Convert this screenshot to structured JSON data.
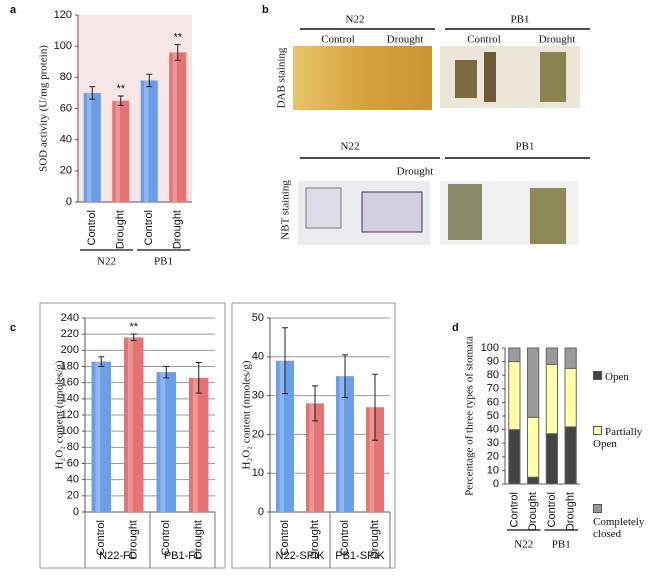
{
  "chart_data": [
    {
      "type": "bar",
      "panel": "a",
      "y_label": "SOD activity (U/mg protein)",
      "categories": [
        "Control",
        "Drought",
        "Control",
        "Drought"
      ],
      "groups": [
        "N22",
        "PB1"
      ],
      "values": [
        70,
        65,
        78,
        96
      ],
      "errors": [
        4,
        3,
        4,
        5
      ],
      "annotations": [
        null,
        "**",
        null,
        "**"
      ],
      "colors": [
        "#6b9ee8",
        "#e57373",
        "#6b9ee8",
        "#e57373"
      ],
      "ylim": [
        0,
        120
      ],
      "yticks": [
        0,
        20,
        40,
        60,
        80,
        100,
        120
      ],
      "grid": false,
      "plot_background": "#f7e6e6"
    },
    {
      "type": "bar",
      "panel": "c",
      "y_label": "H₂O₂ content (nmoles/g)",
      "categories": [
        "Control",
        "Drought",
        "Control",
        "Drought"
      ],
      "groups": [
        "N22-FL",
        "PB1-FL"
      ],
      "values": [
        186,
        216,
        173,
        166
      ],
      "errors": [
        6,
        4,
        7,
        19
      ],
      "annotations": [
        null,
        "**",
        null,
        null
      ],
      "colors": [
        "#6b9ee8",
        "#e57373",
        "#6b9ee8",
        "#e57373"
      ],
      "ylim": [
        0,
        240
      ],
      "yticks": [
        0,
        20,
        40,
        60,
        80,
        100,
        120,
        140,
        160,
        180,
        200,
        220,
        240
      ],
      "grid": true
    },
    {
      "type": "bar",
      "y_label": "H₂O₂ content (nmoles/g)",
      "categories": [
        "Control",
        "Drought",
        "Control",
        "Drought"
      ],
      "groups": [
        "N22-SPIK",
        "PB1-SPIK"
      ],
      "values": [
        39,
        28,
        35,
        27
      ],
      "errors": [
        8.5,
        4.5,
        5.5,
        8.5
      ],
      "colors": [
        "#6b9ee8",
        "#e57373",
        "#6b9ee8",
        "#e57373"
      ],
      "ylim": [
        0,
        50
      ],
      "yticks": [
        0,
        10,
        20,
        30,
        40,
        50
      ],
      "grid": true
    },
    {
      "type": "stacked_bar",
      "panel": "d",
      "y_label": "Percentage of three types of stomata",
      "categories": [
        "Control",
        "Drought",
        "Control",
        "Drought"
      ],
      "groups": [
        "N22",
        "PB1"
      ],
      "series": [
        {
          "name": "Open",
          "color": "#444444",
          "values": [
            40,
            5,
            37,
            42
          ]
        },
        {
          "name": "Partially Open",
          "color": "#ffffa8",
          "values": [
            50,
            44,
            51,
            43
          ]
        },
        {
          "name": "Completely closed",
          "color": "#9a9a9a",
          "values": [
            10,
            51,
            12,
            15
          ]
        }
      ],
      "ylim": [
        0,
        100
      ],
      "yticks": [
        0,
        10,
        20,
        30,
        40,
        50,
        60,
        70,
        80,
        90,
        100
      ],
      "grid": false
    }
  ],
  "panel_b": {
    "label": "b",
    "dab": {
      "row_label": "DAB staining",
      "groups": [
        "N22",
        "PB1"
      ],
      "columns": [
        "Control",
        "Drought",
        "Control",
        "Drought"
      ]
    },
    "nbt": {
      "row_label": "NBT staining",
      "groups": [
        "N22",
        "PB1"
      ],
      "columns": [
        "Drought"
      ]
    }
  }
}
